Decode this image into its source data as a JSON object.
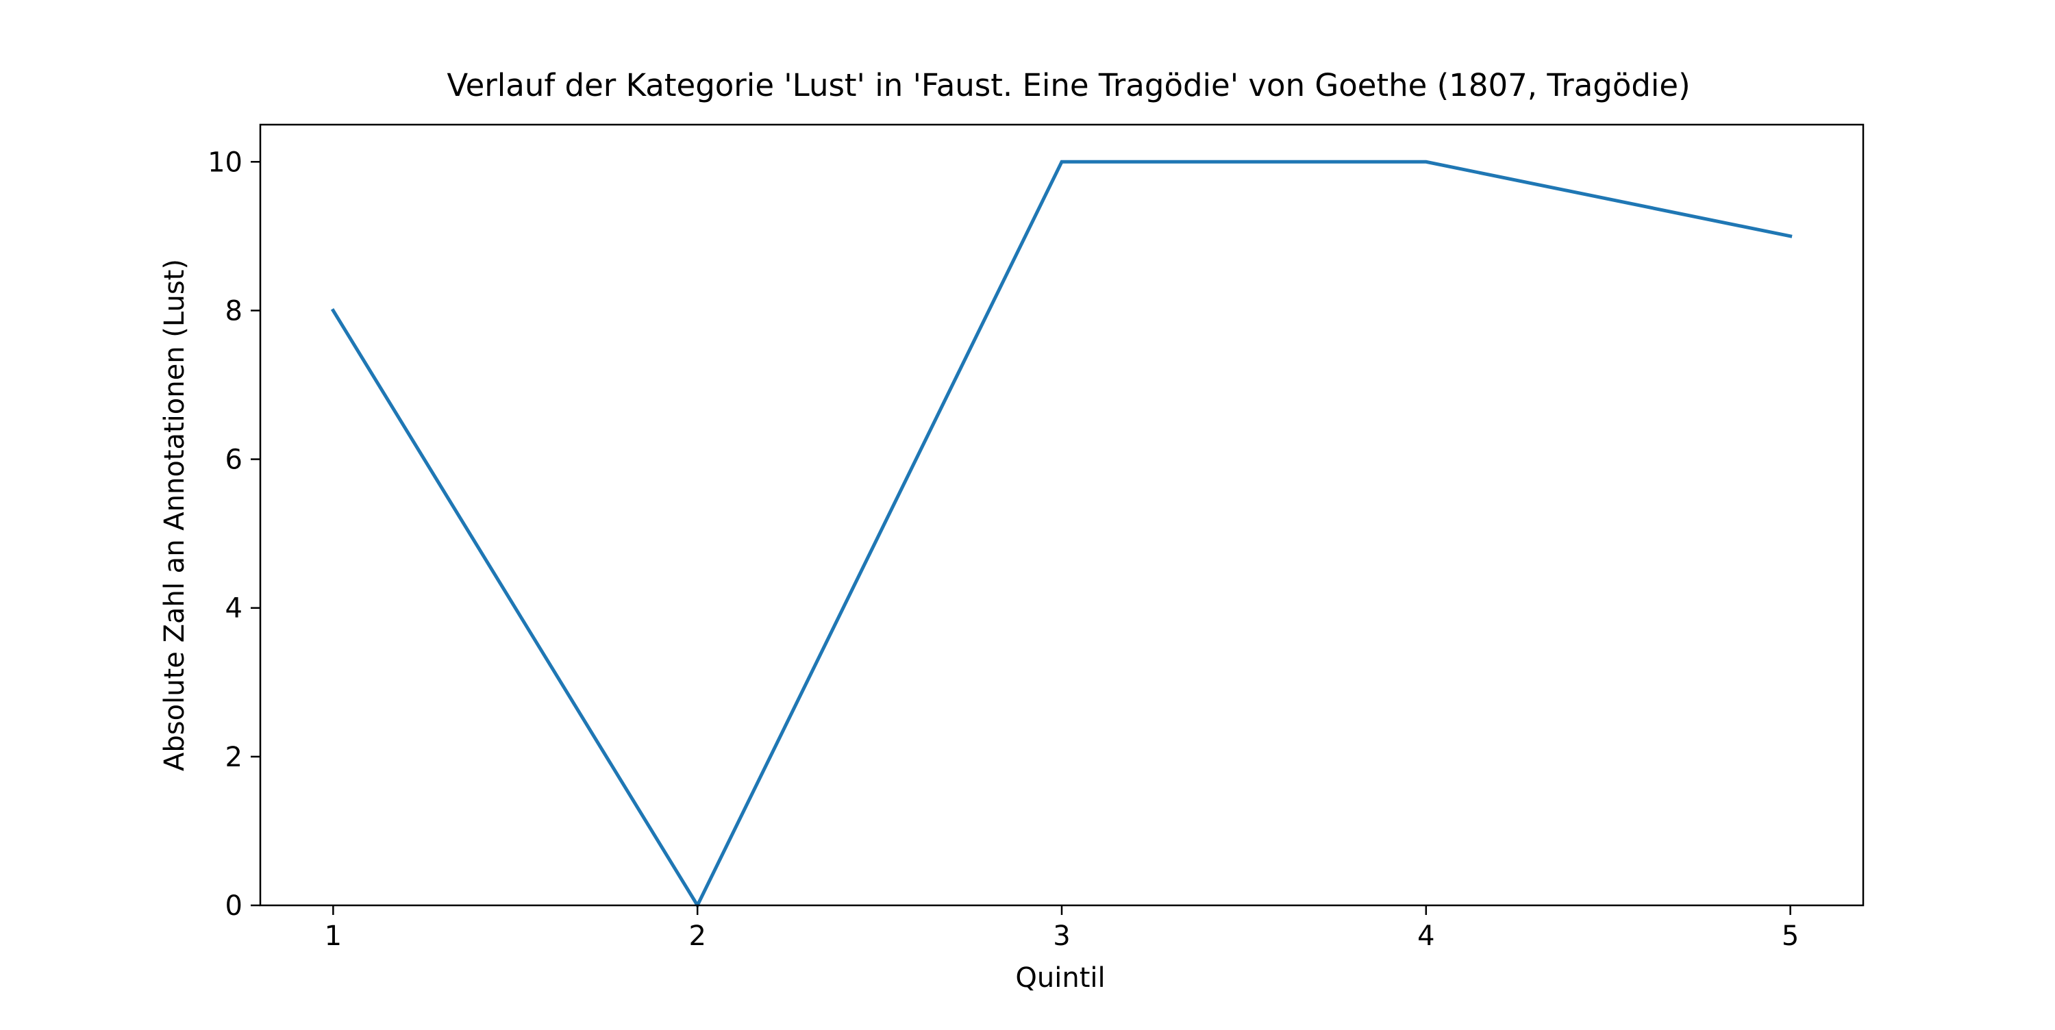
{
  "chart_data": {
    "type": "line",
    "title": "Verlauf der Kategorie 'Lust' in 'Faust. Eine Tragödie' von Goethe (1807, Tragödie)",
    "xlabel": "Quintil",
    "ylabel": "Absolute Zahl an Annotationen (Lust)",
    "x": [
      1,
      2,
      3,
      4,
      5
    ],
    "x_tick_labels": [
      "1",
      "2",
      "3",
      "4",
      "5"
    ],
    "xlim": [
      0.8,
      5.2
    ],
    "ylim": [
      0,
      10.5
    ],
    "y_ticks": [
      0,
      2,
      4,
      6,
      8,
      10
    ],
    "y_tick_labels": [
      "0",
      "2",
      "4",
      "6",
      "8",
      "10"
    ],
    "grid": false,
    "series": [
      {
        "values": [
          8,
          0,
          10,
          10,
          9
        ],
        "color": "#1f77b4"
      }
    ]
  }
}
